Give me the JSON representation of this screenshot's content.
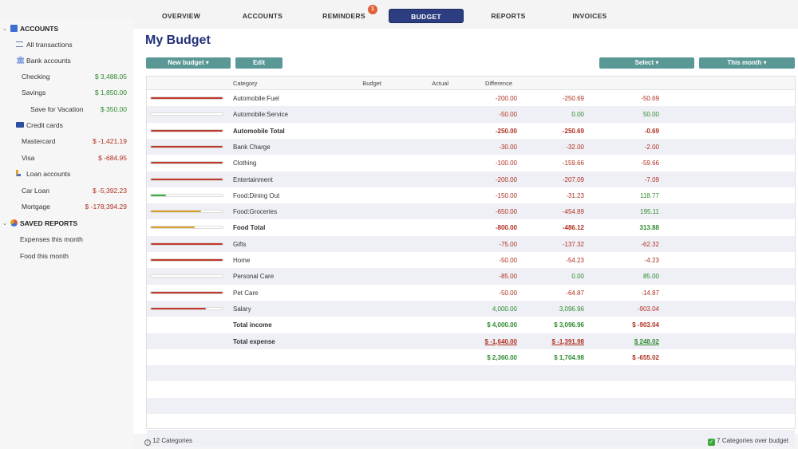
{
  "tabs": [
    {
      "label": "OVERVIEW"
    },
    {
      "label": "ACCOUNTS"
    },
    {
      "label": "REMINDERS",
      "badge": "1"
    },
    {
      "label": "BUDGET",
      "active": true
    },
    {
      "label": "REPORTS"
    },
    {
      "label": "INVOICES"
    }
  ],
  "sidebar": {
    "accounts_header": "ACCOUNTS",
    "all_transactions": "All transactions",
    "bank_accounts": "Bank accounts",
    "checking": {
      "label": "Checking",
      "amount": "$ 3,488.05"
    },
    "savings": {
      "label": "Savings",
      "amount": "$ 1,850.00"
    },
    "save_for_vacation": {
      "label": "Save for Vacation",
      "amount": "$ 350.00"
    },
    "credit_cards": "Credit cards",
    "mastercard": {
      "label": "Mastercard",
      "amount": "$ -1,421.19"
    },
    "visa": {
      "label": "Visa",
      "amount": "$ -684.95"
    },
    "loan_accounts": "Loan accounts",
    "car_loan": {
      "label": "Car Loan",
      "amount": "$ -5,392.23"
    },
    "mortgage": {
      "label": "Mortgage",
      "amount": "$ -178,394.29"
    },
    "saved_reports_header": "SAVED REPORTS",
    "expenses_this_month": "Expenses this month",
    "food_this_month": "Food this month"
  },
  "main": {
    "title": "My Budget",
    "new_budget": "New budget ▾",
    "edit": "Edit",
    "select": "Select ▾",
    "this_month": "This month ▾"
  },
  "table": {
    "headers": {
      "category": "Category",
      "budget": "Budget",
      "actual": "Actual",
      "difference": "Difference"
    },
    "rows": [
      {
        "category": "Automobile:Fuel",
        "budget": "-200.00",
        "actual": "-250.69",
        "difference": "-50.69",
        "progress": 1.0,
        "bar_color": "#c0392b"
      },
      {
        "category": "Automobile:Service",
        "budget": "-50.00",
        "actual": "0.00",
        "difference": "50.00",
        "progress": 0.0,
        "bar_color": "#c0392b"
      },
      {
        "category": "Automobile Total",
        "budget": "-250.00",
        "actual": "-250.69",
        "difference": "-0.69",
        "progress": 1.0,
        "bar_color": "#c0392b",
        "bold": true
      },
      {
        "category": "Bank Charge",
        "budget": "-30.00",
        "actual": "-32.00",
        "difference": "-2.00",
        "progress": 1.0,
        "bar_color": "#c0392b"
      },
      {
        "category": "Clothing",
        "budget": "-100.00",
        "actual": "-159.66",
        "difference": "-59.66",
        "progress": 1.0,
        "bar_color": "#c0392b"
      },
      {
        "category": "Entertainment",
        "budget": "-200.00",
        "actual": "-207.09",
        "difference": "-7.09",
        "progress": 1.0,
        "bar_color": "#c0392b"
      },
      {
        "category": "Food:Dining Out",
        "budget": "-150.00",
        "actual": "-31.23",
        "difference": "118.77",
        "progress": 0.21,
        "bar_color": "#3cb043"
      },
      {
        "category": "Food:Groceries",
        "budget": "-650.00",
        "actual": "-454.89",
        "difference": "195.11",
        "progress": 0.7,
        "bar_color": "#d9a02b"
      },
      {
        "category": "Food Total",
        "budget": "-800.00",
        "actual": "-486.12",
        "difference": "313.88",
        "progress": 0.61,
        "bar_color": "#d9a02b",
        "bold": true
      },
      {
        "category": "Gifts",
        "budget": "-75.00",
        "actual": "-137.32",
        "difference": "-62.32",
        "progress": 1.0,
        "bar_color": "#c0392b"
      },
      {
        "category": "Home",
        "budget": "-50.00",
        "actual": "-54.23",
        "difference": "-4.23",
        "progress": 1.0,
        "bar_color": "#c0392b"
      },
      {
        "category": "Personal Care",
        "budget": "-85.00",
        "actual": "0.00",
        "difference": "85.00",
        "progress": 0.0,
        "bar_color": "#c0392b"
      },
      {
        "category": "Pet Care",
        "budget": "-50.00",
        "actual": "-64.87",
        "difference": "-14.87",
        "progress": 1.0,
        "bar_color": "#c0392b"
      },
      {
        "category": "Salary",
        "budget": "4,000.00",
        "actual": "3,096.96",
        "difference": "-903.04",
        "progress": 0.77,
        "bar_color": "#c0392b"
      }
    ],
    "total_income": {
      "label": "Total income",
      "budget": "$ 4,000.00",
      "actual": "$ 3,096.96",
      "difference": "$ -903.04"
    },
    "total_expense": {
      "label": "Total expense",
      "budget": "$ -1,640.00",
      "actual": "$ -1,391.98",
      "difference": "$ 248.02"
    },
    "net": {
      "budget": "$ 2,360.00",
      "actual": "$ 1,704.98",
      "difference": "$ -655.02"
    }
  },
  "footer": {
    "categories": "12 Categories",
    "over_budget": "7 Categories over budget"
  }
}
